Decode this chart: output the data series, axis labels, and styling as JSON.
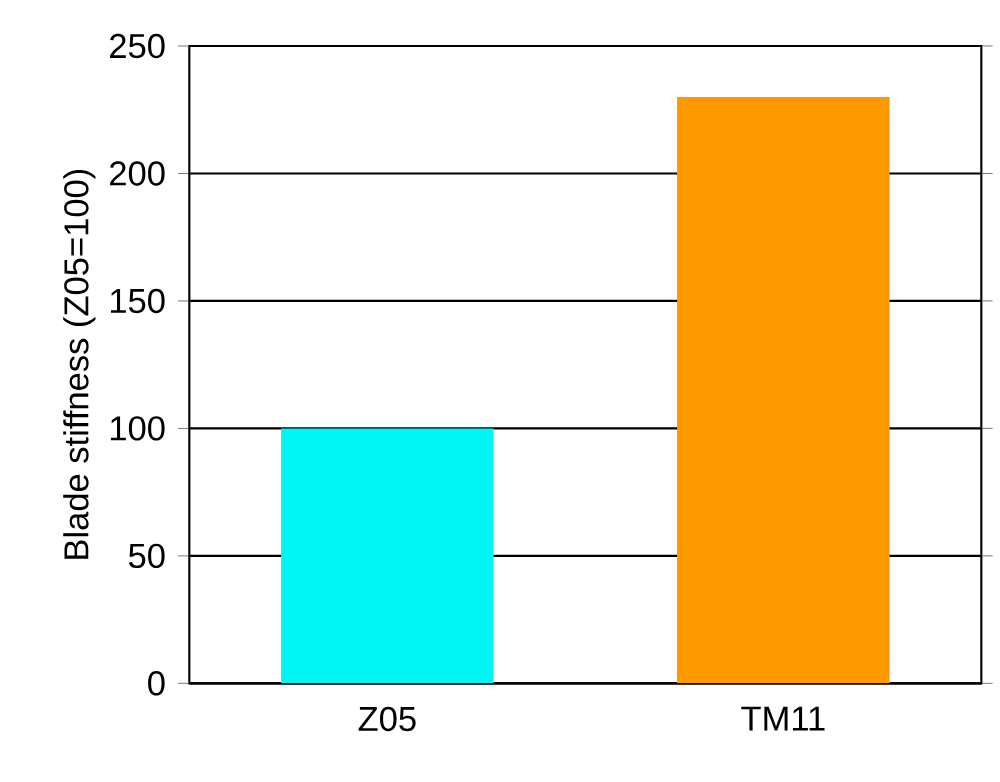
{
  "chart_data": {
    "type": "bar",
    "ylabel": "Blade stiffness (Z05=100)",
    "categories": [
      "Z05",
      "TM11"
    ],
    "values": [
      100,
      230
    ],
    "colors": [
      "#00f5f5",
      "#ff9900"
    ],
    "ylim": [
      0,
      250
    ],
    "yticks": [
      0,
      50,
      100,
      150,
      200,
      250
    ],
    "grid": "y"
  }
}
